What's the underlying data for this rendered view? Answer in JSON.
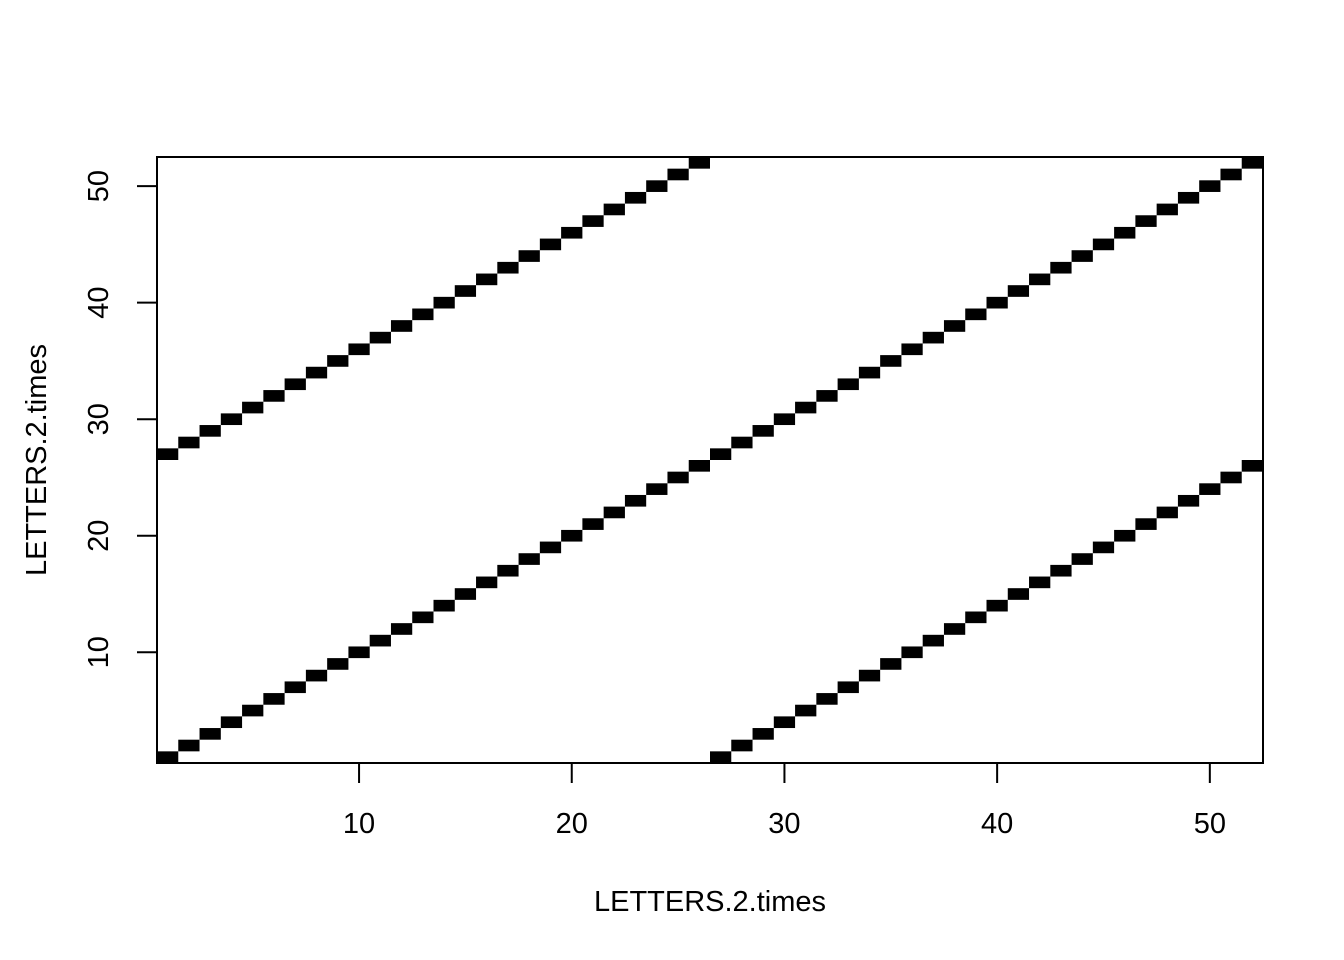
{
  "chart_data": {
    "type": "heatmap",
    "title": "",
    "xlabel": "LETTERS.2.times",
    "ylabel": "LETTERS.2.times",
    "xlim": [
      0.5,
      52.5
    ],
    "ylim": [
      0.5,
      52.5
    ],
    "x_ticks": [
      10,
      20,
      30,
      40,
      50
    ],
    "y_ticks": [
      10,
      20,
      30,
      40,
      50
    ],
    "grid": false,
    "legend": "none",
    "mark_color": "#000000",
    "cells": [
      [
        1,
        1
      ],
      [
        1,
        27
      ],
      [
        2,
        2
      ],
      [
        2,
        28
      ],
      [
        3,
        3
      ],
      [
        3,
        29
      ],
      [
        4,
        4
      ],
      [
        4,
        30
      ],
      [
        5,
        5
      ],
      [
        5,
        31
      ],
      [
        6,
        6
      ],
      [
        6,
        32
      ],
      [
        7,
        7
      ],
      [
        7,
        33
      ],
      [
        8,
        8
      ],
      [
        8,
        34
      ],
      [
        9,
        9
      ],
      [
        9,
        35
      ],
      [
        10,
        10
      ],
      [
        10,
        36
      ],
      [
        11,
        11
      ],
      [
        11,
        37
      ],
      [
        12,
        12
      ],
      [
        12,
        38
      ],
      [
        13,
        13
      ],
      [
        13,
        39
      ],
      [
        14,
        14
      ],
      [
        14,
        40
      ],
      [
        15,
        15
      ],
      [
        15,
        41
      ],
      [
        16,
        16
      ],
      [
        16,
        42
      ],
      [
        17,
        17
      ],
      [
        17,
        43
      ],
      [
        18,
        18
      ],
      [
        18,
        44
      ],
      [
        19,
        19
      ],
      [
        19,
        45
      ],
      [
        20,
        20
      ],
      [
        20,
        46
      ],
      [
        21,
        21
      ],
      [
        21,
        47
      ],
      [
        22,
        22
      ],
      [
        22,
        48
      ],
      [
        23,
        23
      ],
      [
        23,
        49
      ],
      [
        24,
        24
      ],
      [
        24,
        50
      ],
      [
        25,
        25
      ],
      [
        25,
        51
      ],
      [
        26,
        26
      ],
      [
        26,
        52
      ],
      [
        27,
        1
      ],
      [
        27,
        27
      ],
      [
        28,
        2
      ],
      [
        28,
        28
      ],
      [
        29,
        3
      ],
      [
        29,
        29
      ],
      [
        30,
        4
      ],
      [
        30,
        30
      ],
      [
        31,
        5
      ],
      [
        31,
        31
      ],
      [
        32,
        6
      ],
      [
        32,
        32
      ],
      [
        33,
        7
      ],
      [
        33,
        33
      ],
      [
        34,
        8
      ],
      [
        34,
        34
      ],
      [
        35,
        9
      ],
      [
        35,
        35
      ],
      [
        36,
        10
      ],
      [
        36,
        36
      ],
      [
        37,
        11
      ],
      [
        37,
        37
      ],
      [
        38,
        12
      ],
      [
        38,
        38
      ],
      [
        39,
        13
      ],
      [
        39,
        39
      ],
      [
        40,
        14
      ],
      [
        40,
        40
      ],
      [
        41,
        15
      ],
      [
        41,
        41
      ],
      [
        42,
        16
      ],
      [
        42,
        42
      ],
      [
        43,
        17
      ],
      [
        43,
        43
      ],
      [
        44,
        18
      ],
      [
        44,
        44
      ],
      [
        45,
        19
      ],
      [
        45,
        45
      ],
      [
        46,
        20
      ],
      [
        46,
        46
      ],
      [
        47,
        21
      ],
      [
        47,
        47
      ],
      [
        48,
        22
      ],
      [
        48,
        48
      ],
      [
        49,
        23
      ],
      [
        49,
        49
      ],
      [
        50,
        24
      ],
      [
        50,
        50
      ],
      [
        51,
        25
      ],
      [
        51,
        51
      ],
      [
        52,
        26
      ],
      [
        52,
        52
      ]
    ]
  }
}
